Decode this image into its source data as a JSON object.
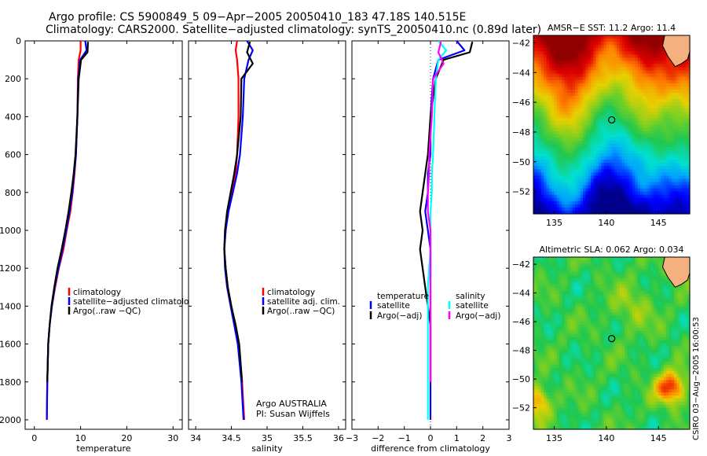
{
  "title": {
    "line1": "Argo profile: CS 5900849_5 09−Apr−2005 20050410_183 47.18S 140.515E",
    "line2": "Climatology: CARS2000. Satellite−adjusted climatology: synTS_20050410.nc (0.89d later)"
  },
  "signature": "CSIRO 03−Aug−2005 16:00:53",
  "colors": {
    "red": "#ff0000",
    "blue": "#0000ff",
    "black": "#000000",
    "cyan": "#00ffff",
    "magenta": "#ff00ff"
  },
  "chart_data": [
    {
      "type": "line",
      "xlabel": "temperature",
      "ylabel": "",
      "xlim": [
        -2,
        32
      ],
      "ylim": [
        0,
        2050
      ],
      "y_reversed": true,
      "xticks": [
        0,
        10,
        20,
        30
      ],
      "yticks": [
        0,
        200,
        400,
        600,
        800,
        1000,
        1200,
        1400,
        1600,
        1800,
        2000
      ],
      "legend_placement": "lower-right",
      "series": [
        {
          "name": "climatology",
          "color": "#ff0000",
          "x": [
            10.0,
            10.0,
            9.6,
            9.4,
            9.3,
            9.0,
            8.7,
            8.3,
            7.8,
            7.0,
            6.3,
            5.3,
            4.5,
            3.8,
            3.3,
            3.0,
            2.8,
            2.7
          ],
          "y": [
            0,
            50,
            100,
            200,
            400,
            600,
            700,
            800,
            900,
            1000,
            1100,
            1200,
            1300,
            1400,
            1500,
            1600,
            1800,
            2000
          ]
        },
        {
          "name": "satellite−adjusted climatology",
          "color": "#0000ff",
          "x": [
            11.0,
            11.3,
            9.9,
            9.5,
            9.3,
            9.0,
            8.6,
            8.2,
            7.6,
            6.9,
            6.1,
            5.2,
            4.4,
            3.8,
            3.3,
            3.0,
            2.8,
            2.7
          ],
          "y": [
            0,
            50,
            100,
            200,
            400,
            600,
            700,
            800,
            900,
            1000,
            1100,
            1200,
            1300,
            1400,
            1500,
            1600,
            1800,
            2000
          ]
        },
        {
          "name": "Argo(..raw −QC)",
          "color": "#000000",
          "x": [
            11.6,
            11.5,
            10.1,
            9.6,
            9.3,
            8.9,
            8.5,
            8.0,
            7.4,
            6.7,
            5.9,
            5.0,
            4.3,
            3.7,
            3.3,
            3.0,
            2.8
          ],
          "y": [
            5,
            60,
            100,
            200,
            400,
            600,
            700,
            800,
            900,
            1000,
            1100,
            1200,
            1300,
            1400,
            1500,
            1600,
            1800
          ]
        }
      ]
    },
    {
      "type": "line",
      "xlabel": "salinity",
      "ylabel": "",
      "xlim": [
        33.9,
        36.1
      ],
      "ylim": [
        0,
        2050
      ],
      "y_reversed": true,
      "xticks": [
        34,
        34.5,
        35,
        35.5,
        36
      ],
      "yticks": [
        0,
        200,
        400,
        600,
        800,
        1000,
        1200,
        1400,
        1600,
        1800,
        2000
      ],
      "legend_placement": "lower-right",
      "series": [
        {
          "name": "climatology",
          "color": "#ff0000",
          "x": [
            34.58,
            34.56,
            34.58,
            34.6,
            34.6,
            34.58,
            34.56,
            34.5,
            34.45,
            34.42,
            34.4,
            34.42,
            34.45,
            34.5,
            34.55,
            34.6,
            34.65,
            34.68
          ],
          "y": [
            0,
            50,
            100,
            200,
            400,
            600,
            700,
            800,
            900,
            1000,
            1100,
            1200,
            1300,
            1400,
            1500,
            1600,
            1800,
            2000
          ]
        },
        {
          "name": "satellite adj. clim.",
          "color": "#0000ff",
          "x": [
            34.72,
            34.8,
            34.74,
            34.68,
            34.66,
            34.62,
            34.58,
            34.52,
            34.46,
            34.42,
            34.4,
            34.41,
            34.44,
            34.49,
            34.54,
            34.59,
            34.64,
            34.67
          ],
          "y": [
            0,
            50,
            100,
            200,
            400,
            600,
            700,
            800,
            900,
            1000,
            1100,
            1200,
            1300,
            1400,
            1500,
            1600,
            1800,
            2000
          ]
        },
        {
          "name": "Argo(..raw −QC)",
          "color": "#000000",
          "x": [
            34.76,
            34.72,
            34.8,
            34.64,
            34.63,
            34.58,
            34.54,
            34.49,
            34.44,
            34.41,
            34.4,
            34.42,
            34.45,
            34.5,
            34.56,
            34.61,
            34.65
          ],
          "y": [
            5,
            60,
            120,
            200,
            400,
            600,
            700,
            800,
            900,
            1000,
            1100,
            1200,
            1300,
            1400,
            1500,
            1600,
            1800
          ]
        }
      ]
    },
    {
      "type": "line",
      "xlabel": "difference from climatology",
      "ylabel": "",
      "xlim": [
        -3,
        3
      ],
      "ylim": [
        0,
        2050
      ],
      "y_reversed": true,
      "xticks": [
        -3,
        -2,
        -1,
        0,
        1,
        2,
        3
      ],
      "yticks": [
        0,
        200,
        400,
        600,
        800,
        1000,
        1200,
        1400,
        1600,
        1800,
        2000
      ],
      "legend_placement": "lower-right",
      "legend_headers": [
        "temperature",
        "salinity"
      ],
      "series": [
        {
          "name": "satellite",
          "group": "temperature",
          "color": "#0000ff",
          "x": [
            1.0,
            1.3,
            0.3,
            0.1,
            0.0,
            0.0,
            -0.1,
            -0.1,
            -0.2,
            -0.1,
            0.0,
            0.0,
            0.0,
            0.0,
            0.0,
            0.0,
            0.0,
            0.0
          ],
          "y": [
            0,
            50,
            100,
            200,
            400,
            600,
            700,
            800,
            900,
            1000,
            1100,
            1200,
            1300,
            1400,
            1500,
            1600,
            1800,
            2000
          ]
        },
        {
          "name": "Argo(−adj)",
          "group": "temperature",
          "color": "#000000",
          "x": [
            1.6,
            1.5,
            0.5,
            0.2,
            0.0,
            -0.1,
            -0.2,
            -0.3,
            -0.4,
            -0.3,
            -0.4,
            -0.3,
            -0.2,
            -0.1,
            0.0,
            0.0,
            0.0
          ],
          "y": [
            5,
            60,
            100,
            200,
            400,
            600,
            700,
            800,
            900,
            1000,
            1100,
            1200,
            1300,
            1400,
            1500,
            1600,
            1800
          ]
        },
        {
          "name": "satellite",
          "group": "salinity",
          "color": "#00ffff",
          "x": [
            0.3,
            0.6,
            0.3,
            0.2,
            0.15,
            0.1,
            0.05,
            0.05,
            0.0,
            0.0,
            0.0,
            -0.05,
            -0.1,
            -0.1,
            -0.1,
            -0.1,
            -0.1,
            -0.1
          ],
          "y": [
            0,
            50,
            100,
            200,
            400,
            600,
            700,
            800,
            900,
            1000,
            1100,
            1200,
            1300,
            1400,
            1500,
            1600,
            1800,
            2000
          ]
        },
        {
          "name": "Argo(−adj)",
          "group": "salinity",
          "color": "#ff00ff",
          "x": [
            0.4,
            0.3,
            0.5,
            0.1,
            0.05,
            -0.05,
            -0.05,
            -0.1,
            -0.1,
            0.0,
            0.0,
            0.0,
            0.0,
            0.0,
            0.0,
            0.0,
            0.0
          ],
          "y": [
            5,
            60,
            120,
            200,
            400,
            600,
            700,
            800,
            900,
            1000,
            1100,
            1200,
            1300,
            1400,
            1500,
            1600,
            1800
          ]
        }
      ]
    },
    {
      "type": "heatmap",
      "title": "AMSR−E SST: 11.2 Argo: 11.4",
      "xlim": [
        133,
        148
      ],
      "ylim": [
        -53.5,
        -41.5
      ],
      "xticks": [
        135,
        140,
        145
      ],
      "yticks": [
        -42,
        -44,
        -46,
        -48,
        -50,
        -52
      ],
      "marker": {
        "lon": 140.515,
        "lat": -47.18
      },
      "colormap": [
        "#00008b",
        "#0000ff",
        "#00a0ff",
        "#00e0d0",
        "#20c850",
        "#80d020",
        "#e8d000",
        "#ff8000",
        "#e00000",
        "#900000"
      ],
      "field": "zonal gradient: warm (red) in north, cold (dark blue) in south; shoreline of Tasmania top-right"
    },
    {
      "type": "heatmap",
      "title": "Altimetric SLA: 0.062 Argo: 0.034",
      "xlim": [
        133,
        148
      ],
      "ylim": [
        -53.5,
        -41.5
      ],
      "xticks": [
        135,
        140,
        145
      ],
      "yticks": [
        -42,
        -44,
        -46,
        -48,
        -50,
        -52
      ],
      "marker": {
        "lon": 140.515,
        "lat": -47.18
      },
      "colormap": [
        "#00008b",
        "#0000ff",
        "#00a0ff",
        "#00e0d0",
        "#20c850",
        "#80d020",
        "#e8d000",
        "#ff8000",
        "#e00000",
        "#900000"
      ],
      "field": "mostly green/yellow mottled field with orange/red eddies near 146E 50.5S and 134E 51.5S"
    }
  ],
  "annotation": {
    "line1": "Argo AUSTRALIA",
    "line2": "PI: Susan Wijffels"
  }
}
